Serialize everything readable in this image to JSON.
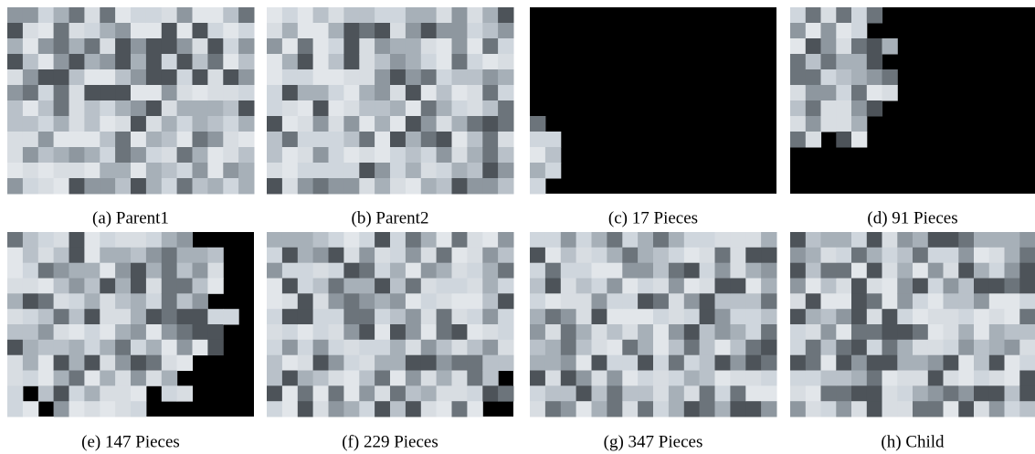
{
  "figure": {
    "panels": [
      {
        "caption": "(a) Parent1"
      },
      {
        "caption": "(b) Parent2"
      },
      {
        "caption": "(c) 17 Pieces"
      },
      {
        "caption": "(d) 91 Pieces"
      },
      {
        "caption": "(e) 147 Pieces"
      },
      {
        "caption": "(f) 229 Pieces"
      },
      {
        "caption": "(g) 347 Pieces"
      },
      {
        "caption": "(h) Child"
      }
    ]
  }
}
